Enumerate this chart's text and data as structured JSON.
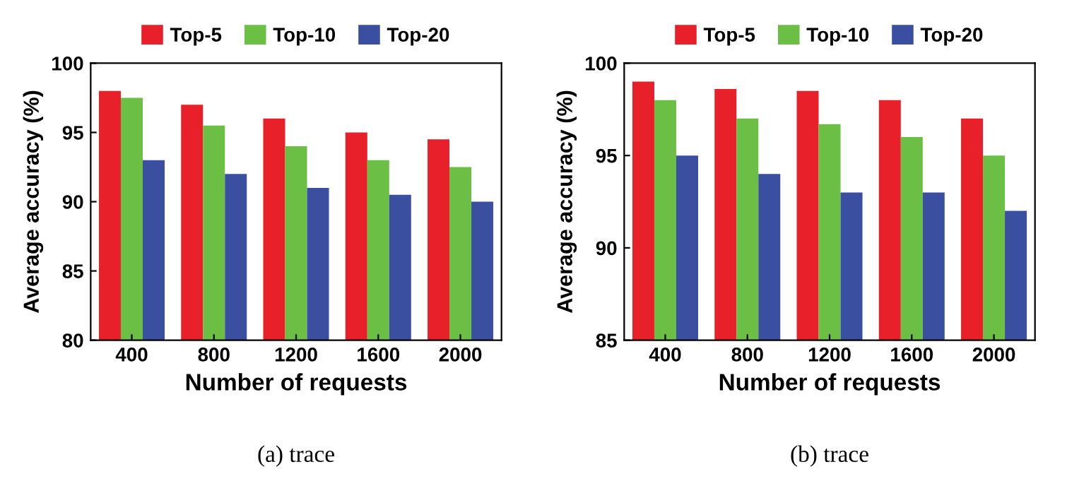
{
  "chart_data": [
    {
      "type": "bar",
      "categories": [
        "400",
        "800",
        "1200",
        "1600",
        "2000"
      ],
      "xlabel": "Number of requests",
      "ylabel": "Average accuracy (%)",
      "ylim": [
        80,
        100
      ],
      "yticks": [
        80,
        85,
        90,
        95,
        100
      ],
      "grid": false,
      "legend": "top",
      "annotations": [
        "(a) trace"
      ],
      "series": [
        {
          "name": "Top-5",
          "color": "#e8202a",
          "values": [
            98,
            97,
            96,
            95,
            94.5
          ]
        },
        {
          "name": "Top-10",
          "color": "#6cbf45",
          "values": [
            97.5,
            95.5,
            94,
            93,
            92.5
          ]
        },
        {
          "name": "Top-20",
          "color": "#3a4fa0",
          "values": [
            93,
            92,
            91,
            90.5,
            90
          ]
        }
      ]
    },
    {
      "type": "bar",
      "categories": [
        "400",
        "800",
        "1200",
        "1600",
        "2000"
      ],
      "xlabel": "Number of requests",
      "ylabel": "Average accuracy (%)",
      "ylim": [
        85,
        100
      ],
      "yticks": [
        85,
        90,
        95,
        100
      ],
      "grid": false,
      "legend": "top",
      "annotations": [
        "(b) trace"
      ],
      "series": [
        {
          "name": "Top-5",
          "color": "#e8202a",
          "values": [
            99,
            98.6,
            98.5,
            98,
            97
          ]
        },
        {
          "name": "Top-10",
          "color": "#6cbf45",
          "values": [
            98,
            97,
            96.7,
            96,
            95
          ]
        },
        {
          "name": "Top-20",
          "color": "#3a4fa0",
          "values": [
            95,
            94,
            93,
            93,
            92
          ]
        }
      ]
    }
  ]
}
